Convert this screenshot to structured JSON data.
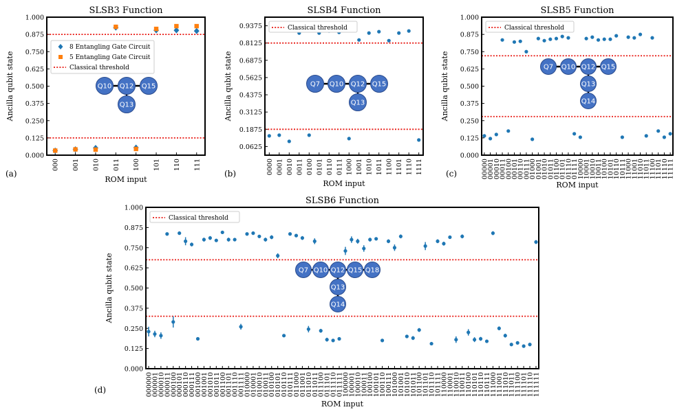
{
  "figure": {
    "panel_letters": [
      "(a)",
      "(b)",
      "(c)",
      "(d)"
    ]
  },
  "colors": {
    "series_blue": "#1f77b4",
    "series_orange": "#ff7f0e",
    "threshold_red": "#e8150f",
    "qubit_fill": "#4472c4",
    "qubit_stroke": "#2a4b8d"
  },
  "chart_data": [
    {
      "type": "scatter",
      "title": "SLSB3 Function",
      "xlabel": "ROM input",
      "ylabel": "Ancilla qubit state",
      "ylim": [
        0,
        1
      ],
      "yticks": [
        "0.000",
        "0.125",
        "0.250",
        "0.375",
        "0.500",
        "0.625",
        "0.750",
        "0.875",
        "1.000"
      ],
      "categories": [
        "000",
        "001",
        "010",
        "011",
        "100",
        "101",
        "110",
        "111"
      ],
      "series": [
        {
          "name": "8 Entangling Gate Circuit",
          "marker": "diamond",
          "values": [
            0.033,
            0.042,
            0.052,
            0.925,
            0.055,
            0.905,
            0.905,
            0.9
          ]
        },
        {
          "name": "5 Entangling Gate Circuit",
          "marker": "square",
          "values": [
            0.033,
            0.042,
            0.04,
            0.93,
            0.045,
            0.915,
            0.935,
            0.935
          ]
        }
      ],
      "thresholds": [
        0.125,
        0.875
      ],
      "threshold_label": "Classical threshold",
      "legend": "upper-left",
      "qubit_diagram": {
        "top": [
          "Q10",
          "Q12",
          "Q15"
        ],
        "bottom": [
          "Q13"
        ]
      }
    },
    {
      "type": "scatter",
      "title": "SLSB4 Function",
      "xlabel": "ROM input",
      "ylabel": "Ancilla qubit state",
      "ylim": [
        0,
        1
      ],
      "yticks": [
        "0.0625",
        "0.1875",
        "0.3125",
        "0.4375",
        "0.5625",
        "0.6875",
        "0.8125",
        "0.9375"
      ],
      "yticks_values": [
        0.0625,
        0.1875,
        0.3125,
        0.4375,
        0.5625,
        0.6875,
        0.8125,
        0.9375
      ],
      "categories": [
        "0000",
        "0001",
        "0010",
        "0011",
        "0100",
        "0101",
        "0110",
        "0111",
        "1000",
        "1001",
        "1010",
        "1011",
        "1100",
        "1101",
        "1110",
        "1111"
      ],
      "values": [
        0.14,
        0.145,
        0.1,
        0.885,
        0.145,
        0.885,
        0.9,
        0.89,
        0.12,
        0.835,
        0.885,
        0.895,
        0.83,
        0.885,
        0.9,
        0.11
      ],
      "thresholds": [
        0.1875,
        0.8125
      ],
      "threshold_label": "Classical threshold",
      "legend": "upper-left",
      "qubit_diagram": {
        "top": [
          "Q7",
          "Q10",
          "Q12",
          "Q15"
        ],
        "bottom": [
          "Q13"
        ]
      }
    },
    {
      "type": "scatter",
      "title": "SLSB5 Function",
      "xlabel": "ROM input",
      "ylabel": "Ancilla qubit state",
      "ylim": [
        0,
        1
      ],
      "yticks": [
        "0.000",
        "0.125",
        "0.250",
        "0.375",
        "0.500",
        "0.625",
        "0.750",
        "0.875",
        "1.000"
      ],
      "categories": [
        "00000",
        "00001",
        "00010",
        "00011",
        "00100",
        "00101",
        "00110",
        "00111",
        "01000",
        "01001",
        "01010",
        "01011",
        "01100",
        "01101",
        "01110",
        "01111",
        "10000",
        "10001",
        "10010",
        "10011",
        "10100",
        "10101",
        "10110",
        "10111",
        "11000",
        "11001",
        "11010",
        "11011",
        "11100",
        "11101",
        "11110",
        "11111"
      ],
      "values": [
        0.14,
        0.12,
        0.15,
        0.835,
        0.175,
        0.82,
        0.825,
        0.75,
        0.115,
        0.845,
        0.83,
        0.84,
        0.845,
        0.86,
        0.85,
        0.155,
        0.13,
        0.845,
        0.855,
        0.835,
        0.84,
        0.84,
        0.865,
        0.13,
        0.855,
        0.85,
        0.875,
        0.14,
        0.85,
        0.175,
        0.13,
        0.155
      ],
      "thresholds": [
        0.28,
        0.72
      ],
      "threshold_label": "Classical threshold",
      "legend": "upper-left",
      "qubit_diagram": {
        "top": [
          "Q7",
          "Q10",
          "Q12",
          "Q15"
        ],
        "bottom": [
          "Q13",
          "Q14"
        ]
      }
    },
    {
      "type": "scatter",
      "title": "SLSB6 Function",
      "xlabel": "ROM input",
      "ylabel": "Ancilla qubit state",
      "ylim": [
        0,
        1
      ],
      "yticks": [
        "0.000",
        "0.125",
        "0.250",
        "0.375",
        "0.500",
        "0.625",
        "0.750",
        "0.875",
        "1.000"
      ],
      "categories": [
        "000000",
        "000001",
        "000010",
        "000011",
        "000100",
        "000101",
        "000110",
        "000111",
        "001000",
        "001001",
        "001010",
        "001011",
        "001100",
        "001101",
        "001110",
        "001111",
        "010000",
        "010001",
        "010010",
        "010011",
        "010100",
        "010101",
        "010110",
        "010111",
        "011000",
        "011001",
        "011010",
        "011011",
        "011100",
        "011101",
        "011110",
        "011111",
        "100000",
        "100001",
        "100010",
        "100011",
        "100100",
        "100101",
        "100110",
        "100111",
        "101000",
        "101001",
        "101010",
        "101011",
        "101100",
        "101101",
        "101110",
        "101111",
        "110000",
        "110001",
        "110010",
        "110011",
        "110100",
        "110101",
        "110110",
        "110111",
        "111000",
        "111001",
        "111010",
        "111011",
        "111100",
        "111101",
        "111110",
        "111111"
      ],
      "values": [
        0.23,
        0.215,
        0.205,
        0.835,
        0.29,
        0.84,
        0.79,
        0.77,
        0.185,
        0.8,
        0.81,
        0.795,
        0.845,
        0.8,
        0.8,
        0.26,
        0.835,
        0.84,
        0.82,
        0.8,
        0.815,
        0.7,
        0.205,
        0.835,
        0.825,
        0.81,
        0.245,
        0.79,
        0.235,
        0.18,
        0.175,
        0.185,
        0.73,
        0.8,
        0.79,
        0.745,
        0.8,
        0.805,
        0.175,
        0.79,
        0.75,
        0.82,
        0.2,
        0.19,
        0.24,
        0.76,
        0.155,
        0.79,
        0.775,
        0.815,
        0.18,
        0.82,
        0.225,
        0.18,
        0.185,
        0.17,
        0.84,
        0.25,
        0.205,
        0.15,
        0.16,
        0.14,
        0.15,
        0.785
      ],
      "errors": [
        0.03,
        0.02,
        0.02,
        0.01,
        0.035,
        0.01,
        0.025,
        0.012,
        0.01,
        0.012,
        0.012,
        0.01,
        0.01,
        0.012,
        0.01,
        0.018,
        0.01,
        0.01,
        0.01,
        0.012,
        0.012,
        0.015,
        0.01,
        0.01,
        0.01,
        0.012,
        0.02,
        0.018,
        0.012,
        0.012,
        0.01,
        0.01,
        0.025,
        0.02,
        0.015,
        0.02,
        0.012,
        0.01,
        0.01,
        0.012,
        0.02,
        0.012,
        0.01,
        0.012,
        0.012,
        0.025,
        0.01,
        0.012,
        0.012,
        0.01,
        0.02,
        0.012,
        0.02,
        0.015,
        0.012,
        0.01,
        0.012,
        0.012,
        0.012,
        0.01,
        0.01,
        0.01,
        0.01,
        0.012
      ],
      "thresholds": [
        0.325,
        0.675
      ],
      "threshold_label": "Classical threshold",
      "legend": "upper-left",
      "qubit_diagram": {
        "top": [
          "Q7",
          "Q10",
          "Q12",
          "Q15",
          "Q18"
        ],
        "bottom": [
          "Q13",
          "Q14"
        ]
      }
    }
  ]
}
